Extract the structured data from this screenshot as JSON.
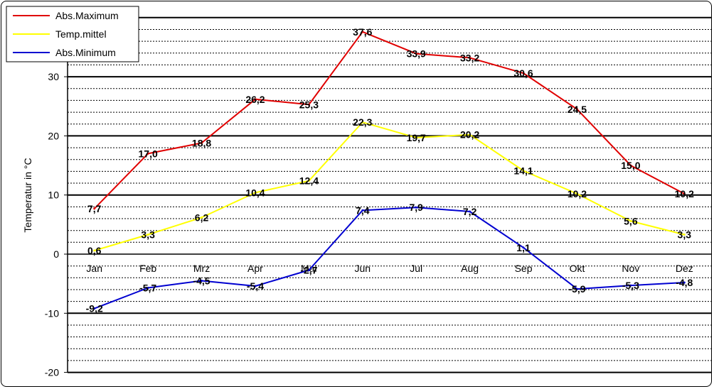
{
  "chart_data": {
    "type": "line",
    "title": "",
    "xlabel": "",
    "ylabel": "Temperatur  in °C",
    "categories": [
      "Jan",
      "Feb",
      "Mrz",
      "Apr",
      "Mai",
      "Jun",
      "Jul",
      "Aug",
      "Sep",
      "Okt",
      "Nov",
      "Dez"
    ],
    "ylim": [
      -20,
      40
    ],
    "yticks": [
      -20,
      -10,
      0,
      10,
      20,
      30
    ],
    "grid": true,
    "legend": "top-left",
    "series": [
      {
        "name": "Abs.Maximum",
        "color": "#e00000",
        "values": [
          7.7,
          17.0,
          18.8,
          26.2,
          25.3,
          37.6,
          33.9,
          33.2,
          30.6,
          24.5,
          15.0,
          10.2
        ],
        "labels": [
          "7,7",
          "17,0",
          "18,8",
          "26,2",
          "25,3",
          "37,6",
          "33,9",
          "33,2",
          "30,6",
          "24,5",
          "15,0",
          "10,2"
        ]
      },
      {
        "name": "Temp.mittel",
        "color": "#ffff00",
        "values": [
          0.6,
          3.3,
          6.2,
          10.4,
          12.4,
          22.3,
          19.7,
          20.2,
          14.1,
          10.2,
          5.6,
          3.3
        ],
        "labels": [
          "0,6",
          "3,3",
          "6,2",
          "10,4",
          "12,4",
          "22,3",
          "19,7",
          "20,2",
          "14,1",
          "10,2",
          "5,6",
          "3,3"
        ]
      },
      {
        "name": "Abs.Minimum",
        "color": "#0000d0",
        "values": [
          -9.2,
          -5.7,
          -4.5,
          -5.4,
          -2.7,
          7.4,
          7.9,
          7.2,
          1.1,
          -5.9,
          -5.3,
          -4.8
        ],
        "labels": [
          "-9,2",
          "-5,7",
          "-4,5",
          "-5,4",
          "-2,7",
          "7,4",
          "7,9",
          "7,2",
          "1,1",
          "-5,9",
          "-5,3",
          "-4,8"
        ]
      }
    ]
  }
}
